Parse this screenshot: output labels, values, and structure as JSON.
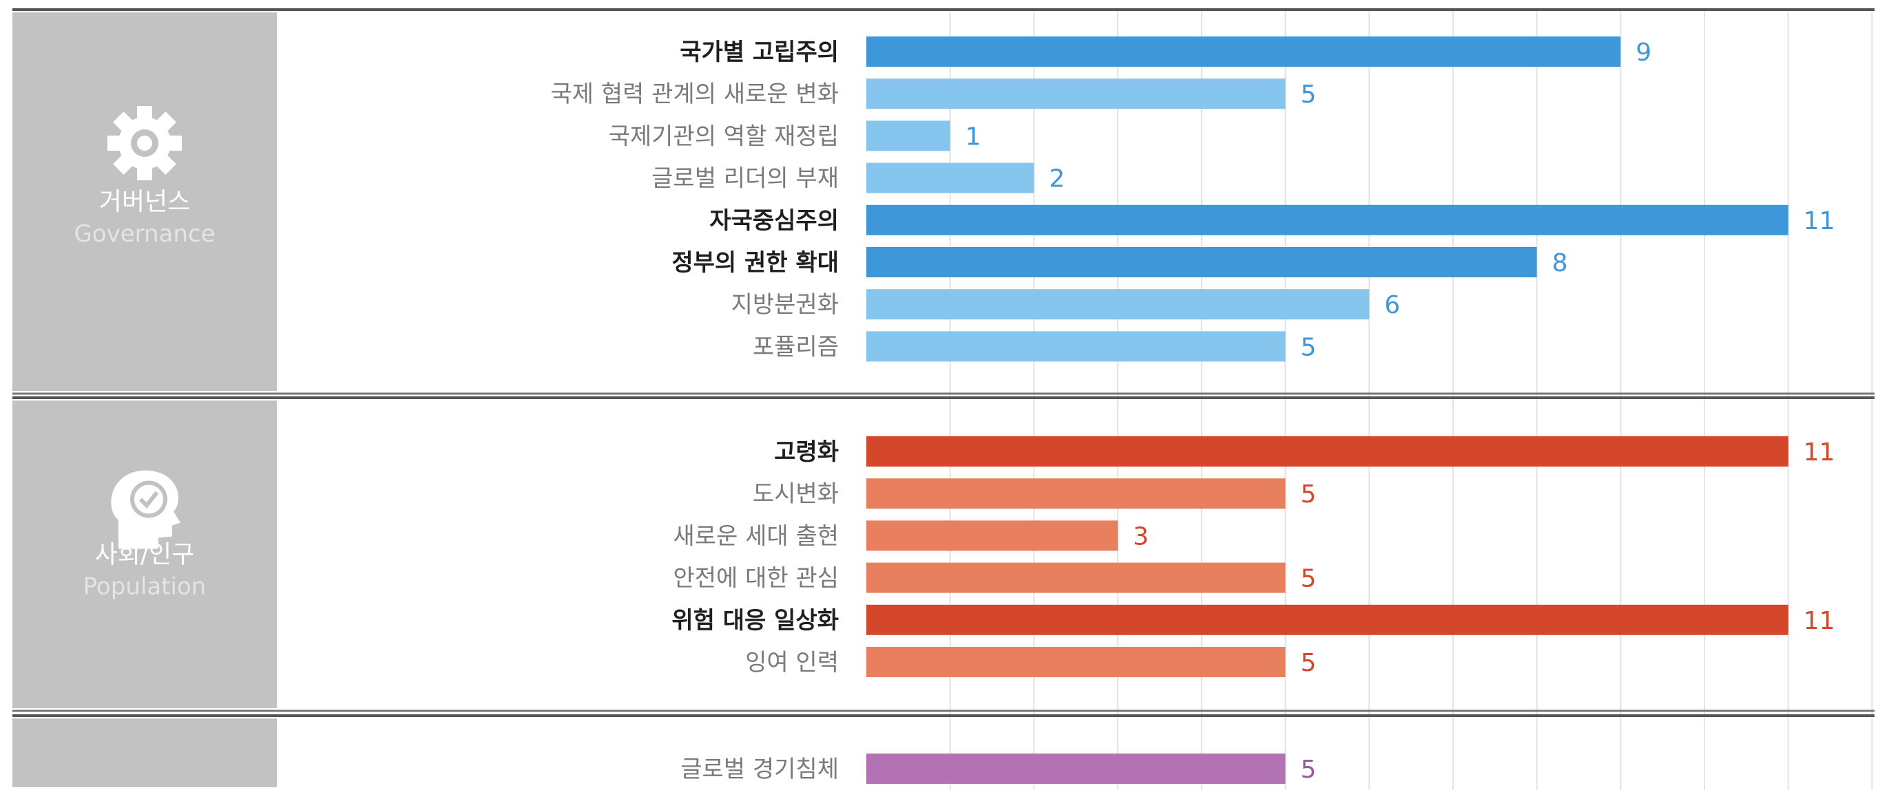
{
  "chart_data": {
    "type": "bar",
    "orientation": "horizontal",
    "xlim": [
      0,
      11
    ],
    "grid": true,
    "groups": [
      {
        "title": "거버넌스",
        "subtitle": "Governance",
        "icon": "gear-icon",
        "color_strong": "#3d97d8",
        "color_light": "#86c5ee",
        "value_color": "#3d97d8",
        "bars": [
          {
            "label": "국가별 고립주의",
            "value": 9,
            "emphasis": true
          },
          {
            "label": "국제 협력 관계의 새로운 변화",
            "value": 5,
            "emphasis": false
          },
          {
            "label": "국제기관의 역할 재정립",
            "value": 1,
            "emphasis": false
          },
          {
            "label": "글로벌 리더의 부재",
            "value": 2,
            "emphasis": false
          },
          {
            "label": "자국중심주의",
            "value": 11,
            "emphasis": true
          },
          {
            "label": "정부의 권한 확대",
            "value": 8,
            "emphasis": true
          },
          {
            "label": "지방분권화",
            "value": 6,
            "emphasis": false
          },
          {
            "label": "포퓰리즘",
            "value": 5,
            "emphasis": false
          }
        ]
      },
      {
        "title": "사회/인구",
        "subtitle": "Population",
        "icon": "head-check-icon",
        "color_strong": "#d4472b",
        "color_light": "#e8805f",
        "value_color": "#d4472b",
        "bars": [
          {
            "label": "고령화",
            "value": 11,
            "emphasis": true
          },
          {
            "label": "도시변화",
            "value": 5,
            "emphasis": false
          },
          {
            "label": "새로운 세대 출현",
            "value": 3,
            "emphasis": false
          },
          {
            "label": "안전에 대한 관심",
            "value": 5,
            "emphasis": false
          },
          {
            "label": "위험 대응 일상화",
            "value": 11,
            "emphasis": true
          },
          {
            "label": "잉여 인력",
            "value": 5,
            "emphasis": false
          }
        ]
      },
      {
        "title": "",
        "subtitle": "",
        "icon": "",
        "color_strong": "#b372b4",
        "color_light": "#b372b4",
        "value_color": "#9a5a9c",
        "bars": [
          {
            "label": "글로벌 경기침체",
            "value": 5,
            "emphasis": false
          }
        ]
      }
    ]
  }
}
